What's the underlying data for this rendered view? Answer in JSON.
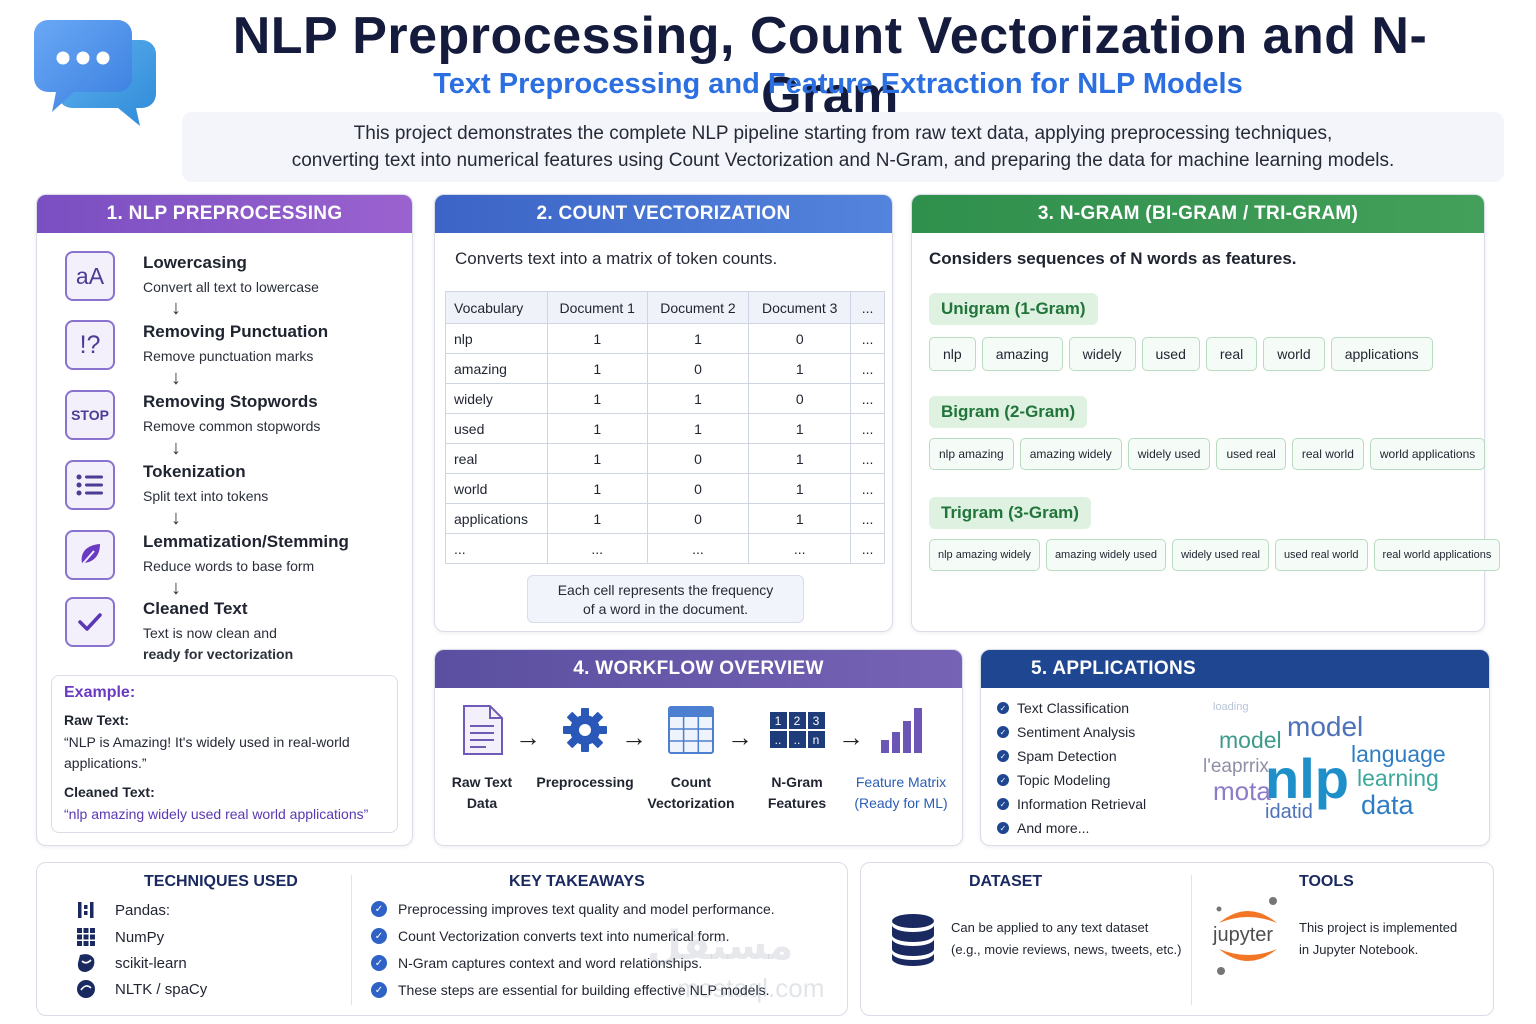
{
  "header": {
    "title": "NLP Preprocessing, Count Vectorization and N-Gram",
    "subtitle": "Text Preprocessing and Feature Extraction for NLP Models",
    "intro_line1": "This project demonstrates the complete NLP pipeline starting from raw text data, applying preprocessing techniques,",
    "intro_line2": "converting text into numerical features using Count Vectorization and N-Gram, and preparing the data for machine learning models."
  },
  "preprocessing": {
    "heading": "1. NLP PREPROCESSING",
    "steps": [
      {
        "icon_text": "aA",
        "icon": "lowercase-icon",
        "title": "Lowercasing",
        "desc": "Convert all text to lowercase"
      },
      {
        "icon_text": "!?",
        "icon": "punctuation-icon",
        "title": "Removing Punctuation",
        "desc": "Remove punctuation marks"
      },
      {
        "icon_text": "STOP",
        "icon": "stop-icon",
        "title": "Removing Stopwords",
        "desc": "Remove common stopwords"
      },
      {
        "icon_text": "",
        "icon": "list-icon",
        "title": "Tokenization",
        "desc": "Split text into tokens"
      },
      {
        "icon_text": "",
        "icon": "leaf-icon",
        "title": "Lemmatization/Stemming",
        "desc": "Reduce words to base form"
      },
      {
        "icon_text": "",
        "icon": "checkmark-icon",
        "title": "Cleaned Text",
        "desc_line1": "Text is now clean and",
        "desc_line2": "ready for vectorization"
      }
    ],
    "example": {
      "heading": "Example:",
      "raw_label": "Raw Text:",
      "raw_text": "“NLP is Amazing! It's widely used in real-world applications.”",
      "clean_label": "Cleaned Text:",
      "clean_text": "“nlp amazing widely used real world applications”"
    }
  },
  "count_vectorization": {
    "heading": "2. COUNT VECTORIZATION",
    "desc": "Converts text into a matrix of token counts.",
    "columns": [
      "Vocabulary",
      "Document 1",
      "Document 2",
      "Document 3",
      "..."
    ],
    "rows": [
      [
        "nlp",
        "1",
        "1",
        "0",
        "..."
      ],
      [
        "amazing",
        "1",
        "0",
        "1",
        "..."
      ],
      [
        "widely",
        "1",
        "1",
        "0",
        "..."
      ],
      [
        "used",
        "1",
        "1",
        "1",
        "..."
      ],
      [
        "real",
        "1",
        "0",
        "1",
        "..."
      ],
      [
        "world",
        "1",
        "0",
        "1",
        "..."
      ],
      [
        "applications",
        "1",
        "0",
        "1",
        "..."
      ],
      [
        "...",
        "...",
        "...",
        "...",
        "..."
      ]
    ],
    "note_line1": "Each cell represents the frequency",
    "note_line2": "of a word in the document."
  },
  "ngram": {
    "heading": "3. N-GRAM (BI-GRAM / TRI-GRAM)",
    "desc": "Considers sequences of N words as features.",
    "unigram_label": "Unigram (1-Gram)",
    "unigrams": [
      "nlp",
      "amazing",
      "widely",
      "used",
      "real",
      "world",
      "applications"
    ],
    "bigram_label": "Bigram (2-Gram)",
    "bigrams": [
      "nlp amazing",
      "amazing widely",
      "widely used",
      "used real",
      "real world",
      "world applications"
    ],
    "trigram_label": "Trigram (3-Gram)",
    "trigrams": [
      "nlp amazing widely",
      "amazing widely used",
      "widely used real",
      "used real world",
      "real world applications"
    ]
  },
  "workflow": {
    "heading": "4. WORKFLOW OVERVIEW",
    "steps": [
      {
        "icon": "document-icon",
        "line1": "Raw Text",
        "line2": "Data"
      },
      {
        "icon": "gear-icon",
        "line1": "Preprocessing",
        "line2": ""
      },
      {
        "icon": "grid-icon",
        "line1": "Count",
        "line2": "Vectorization"
      },
      {
        "icon": "ngram-blocks-icon",
        "line1": "N-Gram",
        "line2": "Features"
      },
      {
        "icon": "bar-chart-icon",
        "line1": "Feature Matrix",
        "line2": "(Ready for ML)"
      }
    ],
    "ngram_block_labels": [
      "1",
      "2",
      "3",
      "..",
      "..",
      "n"
    ]
  },
  "applications": {
    "heading": "5. APPLICATIONS",
    "items": [
      "Text Classification",
      "Sentiment Analysis",
      "Spam Detection",
      "Topic Modeling",
      "Information Retrieval",
      "And more..."
    ],
    "wordcloud": [
      "model",
      "model",
      "language",
      "nlp",
      "learning",
      "data",
      "mota",
      "idatid",
      "l'eaprrix",
      "loading"
    ]
  },
  "techniques": {
    "heading": "TECHNIQUES USED",
    "items": [
      {
        "icon": "pandas-icon",
        "label": "Pandas:"
      },
      {
        "icon": "numpy-icon",
        "label": "NumPy"
      },
      {
        "icon": "scikit-learn-icon",
        "label": "scikit-learn"
      },
      {
        "icon": "nltk-icon",
        "label": "NLTK / spaCy"
      }
    ]
  },
  "takeaways": {
    "heading": "KEY TAKEAWAYS",
    "items": [
      "Preprocessing improves text quality and model performance.",
      "Count Vectorization converts text into numerical form.",
      "N-Gram captures context and word relationships.",
      "These steps are essential for building effective NLP models."
    ]
  },
  "dataset": {
    "heading": "DATASET",
    "line1": "Can be applied to any text dataset",
    "line2": "(e.g., movie reviews, news, tweets, etc.)"
  },
  "tools": {
    "heading": "TOOLS",
    "logo_text": "jupyter",
    "line1": "This project is implemented",
    "line2": "in Jupyter Notebook."
  },
  "watermark": {
    "line1": "مستقل",
    "line2": "mostaql.com"
  },
  "colors": {
    "purple": "#7a4fc1",
    "blue": "#3c64c6",
    "green": "#2f8f4c",
    "navy": "#1f4690",
    "title": "#141b3c"
  }
}
